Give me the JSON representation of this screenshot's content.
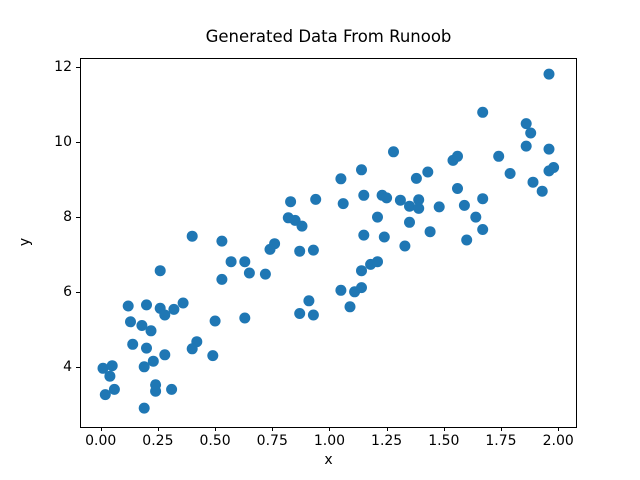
{
  "figure": {
    "background": "#ffffff"
  },
  "chart_data": {
    "type": "scatter",
    "title": "Generated Data From Runoob",
    "xlabel": "x",
    "ylabel": "y",
    "xlim": [
      -0.0906,
      2.0823
    ],
    "ylim": [
      2.397,
      12.228
    ],
    "xticks": [
      0.0,
      0.25,
      0.5,
      0.75,
      1.0,
      1.25,
      1.5,
      1.75,
      2.0
    ],
    "xtick_labels": [
      "0.00",
      "0.25",
      "0.50",
      "0.75",
      "1.00",
      "1.25",
      "1.50",
      "1.75",
      "2.00"
    ],
    "yticks": [
      4,
      6,
      8,
      10,
      12
    ],
    "ytick_labels": [
      "4",
      "6",
      "8",
      "10",
      "12"
    ],
    "grid": false,
    "legend_position": "none",
    "marker_color": "#1f77b4",
    "marker_diameter_px": 11,
    "points": [
      [
        0.01,
        3.96
      ],
      [
        0.05,
        4.03
      ],
      [
        0.04,
        3.75
      ],
      [
        0.02,
        3.26
      ],
      [
        0.06,
        3.4
      ],
      [
        0.19,
        4.0
      ],
      [
        0.24,
        3.52
      ],
      [
        0.24,
        3.35
      ],
      [
        0.31,
        3.4
      ],
      [
        0.19,
        2.9
      ],
      [
        0.14,
        4.6
      ],
      [
        0.2,
        4.5
      ],
      [
        0.28,
        4.32
      ],
      [
        0.23,
        4.15
      ],
      [
        0.13,
        5.2
      ],
      [
        0.18,
        5.1
      ],
      [
        0.22,
        4.96
      ],
      [
        0.12,
        5.62
      ],
      [
        0.2,
        5.65
      ],
      [
        0.26,
        5.56
      ],
      [
        0.28,
        5.38
      ],
      [
        0.32,
        5.53
      ],
      [
        0.36,
        5.7
      ],
      [
        0.26,
        6.56
      ],
      [
        0.42,
        4.67
      ],
      [
        0.4,
        4.48
      ],
      [
        0.49,
        4.3
      ],
      [
        0.5,
        5.22
      ],
      [
        0.63,
        5.3
      ],
      [
        0.4,
        7.48
      ],
      [
        0.53,
        7.35
      ],
      [
        0.53,
        6.33
      ],
      [
        0.57,
        6.8
      ],
      [
        0.63,
        6.8
      ],
      [
        0.65,
        6.5
      ],
      [
        0.72,
        6.47
      ],
      [
        0.87,
        5.42
      ],
      [
        0.93,
        5.38
      ],
      [
        0.91,
        5.76
      ],
      [
        0.76,
        7.28
      ],
      [
        0.74,
        7.13
      ],
      [
        0.87,
        7.08
      ],
      [
        0.93,
        7.11
      ],
      [
        0.83,
        8.4
      ],
      [
        0.94,
        8.46
      ],
      [
        0.82,
        7.97
      ],
      [
        0.85,
        7.9
      ],
      [
        0.88,
        7.75
      ],
      [
        1.05,
        9.01
      ],
      [
        1.06,
        8.35
      ],
      [
        1.14,
        9.25
      ],
      [
        1.28,
        9.73
      ],
      [
        1.15,
        8.57
      ],
      [
        1.23,
        8.57
      ],
      [
        1.25,
        8.5
      ],
      [
        1.31,
        8.44
      ],
      [
        1.35,
        8.28
      ],
      [
        1.39,
        8.45
      ],
      [
        1.39,
        8.22
      ],
      [
        1.21,
        7.99
      ],
      [
        1.15,
        7.51
      ],
      [
        1.24,
        7.46
      ],
      [
        1.33,
        7.22
      ],
      [
        1.35,
        7.85
      ],
      [
        1.14,
        6.56
      ],
      [
        1.18,
        6.73
      ],
      [
        1.21,
        6.8
      ],
      [
        1.05,
        6.04
      ],
      [
        1.11,
        6.0
      ],
      [
        1.14,
        6.11
      ],
      [
        1.09,
        5.6
      ],
      [
        1.48,
        8.26
      ],
      [
        1.56,
        8.75
      ],
      [
        1.59,
        8.3
      ],
      [
        1.67,
        8.48
      ],
      [
        1.64,
        7.99
      ],
      [
        1.67,
        7.66
      ],
      [
        1.44,
        7.6
      ],
      [
        1.6,
        7.38
      ],
      [
        1.43,
        9.19
      ],
      [
        1.54,
        9.5
      ],
      [
        1.56,
        9.61
      ],
      [
        1.74,
        9.61
      ],
      [
        1.79,
        9.15
      ],
      [
        1.67,
        10.78
      ],
      [
        1.86,
        10.48
      ],
      [
        1.88,
        10.23
      ],
      [
        1.86,
        9.88
      ],
      [
        1.96,
        9.8
      ],
      [
        1.96,
        11.8
      ],
      [
        1.96,
        9.22
      ],
      [
        1.98,
        9.31
      ],
      [
        1.89,
        8.92
      ],
      [
        1.93,
        8.68
      ],
      [
        1.38,
        9.02
      ]
    ]
  }
}
